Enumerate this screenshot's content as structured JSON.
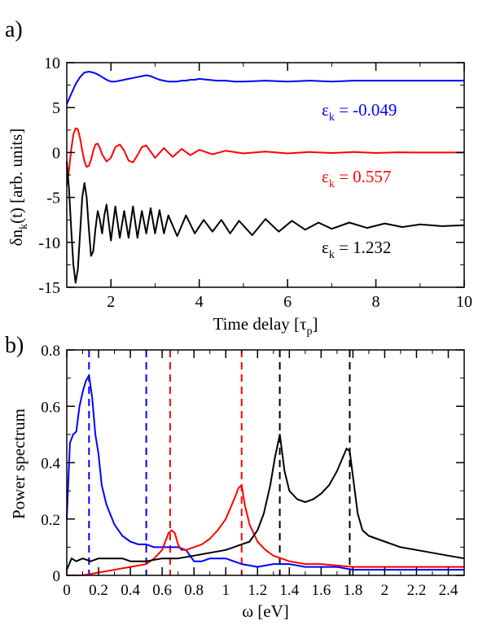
{
  "chart_data": [
    {
      "panel_label": "a)",
      "type": "line",
      "xlabel": "Time delay [τ",
      "xlabel_sub": "p",
      "xlabel_end": "]",
      "ylabel": "δn",
      "ylabel_sub": "k",
      "ylabel_end": "(t)  [arb. units]",
      "xlim": [
        1,
        10
      ],
      "ylim": [
        -15,
        10
      ],
      "xticks": [
        2,
        4,
        6,
        8,
        10
      ],
      "yticks": [
        -15,
        -10,
        -5,
        0,
        5,
        10
      ],
      "grid": false,
      "annotations": [
        {
          "pre": "ε",
          "sub": "k",
          "post": " = -0.049",
          "color": "#0000ff"
        },
        {
          "pre": "ε",
          "sub": "k",
          "post": " = 0.557",
          "color": "#ff0000"
        },
        {
          "pre": "ε",
          "sub": "k",
          "post": " = 1.232",
          "color": "#000000"
        }
      ],
      "series": [
        {
          "color": "#0000ff",
          "x": [
            1.0,
            1.1,
            1.2,
            1.3,
            1.4,
            1.5,
            1.6,
            1.7,
            1.8,
            1.9,
            2.0,
            2.1,
            2.2,
            2.3,
            2.4,
            2.5,
            2.6,
            2.7,
            2.8,
            2.9,
            3.0,
            3.1,
            3.2,
            3.3,
            3.4,
            3.5,
            3.6,
            3.7,
            3.8,
            3.9,
            4.0,
            4.2,
            4.4,
            4.6,
            4.8,
            5.0,
            5.5,
            6.0,
            6.5,
            7.0,
            7.5,
            8.0,
            8.5,
            9.0,
            9.5,
            10.0
          ],
          "y": [
            5.4,
            6.5,
            7.6,
            8.4,
            8.9,
            9.0,
            8.9,
            8.7,
            8.4,
            8.1,
            7.9,
            7.9,
            8.0,
            8.1,
            8.2,
            8.3,
            8.4,
            8.5,
            8.6,
            8.5,
            8.3,
            8.1,
            8.0,
            7.9,
            7.9,
            7.9,
            8.0,
            8.0,
            8.1,
            8.1,
            8.2,
            8.1,
            8.0,
            8.0,
            7.9,
            7.9,
            8.0,
            7.9,
            8.0,
            7.9,
            8.0,
            8.0,
            8.0,
            8.0,
            8.0,
            8.0
          ]
        },
        {
          "color": "#ff0000",
          "x": [
            1.0,
            1.05,
            1.1,
            1.15,
            1.2,
            1.25,
            1.3,
            1.35,
            1.4,
            1.45,
            1.5,
            1.55,
            1.6,
            1.65,
            1.7,
            1.75,
            1.8,
            1.9,
            2.0,
            2.1,
            2.2,
            2.3,
            2.4,
            2.5,
            2.6,
            2.7,
            2.8,
            2.9,
            3.0,
            3.2,
            3.4,
            3.6,
            3.8,
            4.0,
            4.3,
            4.6,
            5.0,
            5.5,
            6.0,
            6.5,
            7.0,
            7.5,
            8.0,
            8.5,
            9.0,
            9.5,
            10.0
          ],
          "y": [
            -3.6,
            -2.0,
            0.3,
            2.0,
            2.7,
            2.6,
            1.6,
            0.2,
            -1.0,
            -1.6,
            -1.5,
            -0.8,
            0.2,
            0.9,
            1.0,
            0.5,
            -0.2,
            -1.0,
            -0.6,
            0.6,
            0.9,
            0.2,
            -0.9,
            -1.1,
            -0.3,
            0.6,
            0.8,
            0.1,
            -0.6,
            0.5,
            -0.5,
            0.4,
            -0.3,
            0.3,
            -0.2,
            0.2,
            -0.1,
            0.1,
            -0.1,
            0.05,
            -0.05,
            0.05,
            -0.05,
            0.03,
            0.0,
            0.0,
            0.0
          ]
        },
        {
          "color": "#000000",
          "x": [
            1.0,
            1.05,
            1.1,
            1.15,
            1.2,
            1.25,
            1.3,
            1.35,
            1.4,
            1.45,
            1.5,
            1.55,
            1.6,
            1.65,
            1.7,
            1.75,
            1.8,
            1.85,
            1.9,
            2.0,
            2.1,
            2.2,
            2.3,
            2.4,
            2.5,
            2.6,
            2.7,
            2.8,
            2.9,
            3.0,
            3.1,
            3.2,
            3.3,
            3.5,
            3.7,
            3.9,
            4.1,
            4.3,
            4.5,
            4.7,
            4.9,
            5.2,
            5.5,
            5.8,
            6.1,
            6.4,
            6.7,
            7.0,
            7.4,
            7.8,
            8.2,
            8.6,
            9.0,
            9.5,
            10.0
          ],
          "y": [
            -1.0,
            -4.0,
            -8.5,
            -12.5,
            -14.5,
            -13.0,
            -9.0,
            -5.0,
            -3.4,
            -5.0,
            -8.5,
            -11.5,
            -11.0,
            -8.5,
            -6.5,
            -7.5,
            -9.0,
            -7.0,
            -5.8,
            -9.8,
            -6.0,
            -9.5,
            -6.5,
            -9.5,
            -6.0,
            -9.5,
            -6.5,
            -9.0,
            -6.2,
            -9.0,
            -6.4,
            -9.0,
            -7.0,
            -9.3,
            -7.0,
            -9.0,
            -7.5,
            -8.8,
            -7.5,
            -9.0,
            -7.6,
            -9.2,
            -7.4,
            -8.8,
            -7.6,
            -8.6,
            -7.8,
            -8.5,
            -7.8,
            -8.4,
            -7.9,
            -8.3,
            -8.0,
            -8.2,
            -8.1
          ]
        }
      ]
    },
    {
      "panel_label": "b)",
      "type": "line",
      "xlabel": "ω  [eV]",
      "ylabel": "Power spectrum",
      "xlim": [
        0,
        2.5
      ],
      "ylim": [
        0,
        0.8
      ],
      "xticks": [
        0,
        0.2,
        0.4,
        0.6,
        0.8,
        1,
        1.2,
        1.4,
        1.6,
        1.8,
        2,
        2.2,
        2.4
      ],
      "yticks": [
        0,
        0.2,
        0.4,
        0.6,
        0.8
      ],
      "grid": false,
      "vlines": [
        {
          "x": 0.14,
          "color": "#0000ff"
        },
        {
          "x": 0.5,
          "color": "#0000ff"
        },
        {
          "x": 0.65,
          "color": "#ff0000"
        },
        {
          "x": 1.1,
          "color": "#ff0000"
        },
        {
          "x": 1.34,
          "color": "#000000"
        },
        {
          "x": 1.78,
          "color": "#000000"
        }
      ],
      "series": [
        {
          "color": "#0000ff",
          "x": [
            0.0,
            0.02,
            0.04,
            0.06,
            0.08,
            0.1,
            0.12,
            0.14,
            0.16,
            0.18,
            0.2,
            0.22,
            0.25,
            0.3,
            0.35,
            0.4,
            0.45,
            0.5,
            0.55,
            0.6,
            0.65,
            0.7,
            0.75,
            0.8,
            0.85,
            0.9,
            0.95,
            1.0,
            1.05,
            1.1,
            1.2,
            1.3,
            1.4,
            1.5,
            1.6,
            1.7,
            1.8,
            1.9,
            2.0,
            2.2,
            2.5
          ],
          "y": [
            0.2,
            0.47,
            0.5,
            0.51,
            0.6,
            0.65,
            0.69,
            0.71,
            0.63,
            0.5,
            0.43,
            0.32,
            0.25,
            0.18,
            0.14,
            0.12,
            0.11,
            0.11,
            0.1,
            0.1,
            0.1,
            0.1,
            0.09,
            0.05,
            0.05,
            0.06,
            0.06,
            0.06,
            0.05,
            0.04,
            0.03,
            0.04,
            0.04,
            0.03,
            0.03,
            0.03,
            0.02,
            0.02,
            0.02,
            0.02,
            0.02
          ]
        },
        {
          "color": "#ff0000",
          "x": [
            0.0,
            0.1,
            0.2,
            0.3,
            0.4,
            0.5,
            0.55,
            0.6,
            0.62,
            0.64,
            0.66,
            0.68,
            0.7,
            0.72,
            0.75,
            0.8,
            0.85,
            0.9,
            0.95,
            1.0,
            1.03,
            1.06,
            1.08,
            1.1,
            1.12,
            1.15,
            1.2,
            1.25,
            1.3,
            1.4,
            1.5,
            1.6,
            1.8,
            2.0,
            2.2,
            2.5
          ],
          "y": [
            0.0,
            0.0,
            0.01,
            0.02,
            0.03,
            0.04,
            0.06,
            0.09,
            0.12,
            0.15,
            0.16,
            0.15,
            0.11,
            0.09,
            0.09,
            0.1,
            0.11,
            0.13,
            0.16,
            0.2,
            0.24,
            0.28,
            0.31,
            0.32,
            0.25,
            0.18,
            0.12,
            0.09,
            0.07,
            0.05,
            0.04,
            0.04,
            0.03,
            0.03,
            0.03,
            0.03
          ]
        },
        {
          "color": "#000000",
          "x": [
            0.0,
            0.03,
            0.06,
            0.1,
            0.15,
            0.2,
            0.25,
            0.3,
            0.35,
            0.4,
            0.5,
            0.6,
            0.7,
            0.8,
            0.9,
            1.0,
            1.05,
            1.1,
            1.15,
            1.2,
            1.24,
            1.28,
            1.31,
            1.34,
            1.37,
            1.4,
            1.45,
            1.5,
            1.55,
            1.6,
            1.65,
            1.7,
            1.73,
            1.76,
            1.78,
            1.8,
            1.83,
            1.86,
            1.9,
            2.0,
            2.1,
            2.2,
            2.3,
            2.4,
            2.5
          ],
          "y": [
            0.02,
            0.06,
            0.05,
            0.06,
            0.05,
            0.06,
            0.06,
            0.06,
            0.06,
            0.05,
            0.05,
            0.06,
            0.06,
            0.07,
            0.08,
            0.09,
            0.1,
            0.11,
            0.12,
            0.16,
            0.22,
            0.32,
            0.42,
            0.5,
            0.37,
            0.3,
            0.27,
            0.26,
            0.27,
            0.29,
            0.32,
            0.37,
            0.41,
            0.45,
            0.44,
            0.35,
            0.22,
            0.16,
            0.14,
            0.12,
            0.1,
            0.09,
            0.08,
            0.07,
            0.06
          ]
        }
      ]
    }
  ]
}
